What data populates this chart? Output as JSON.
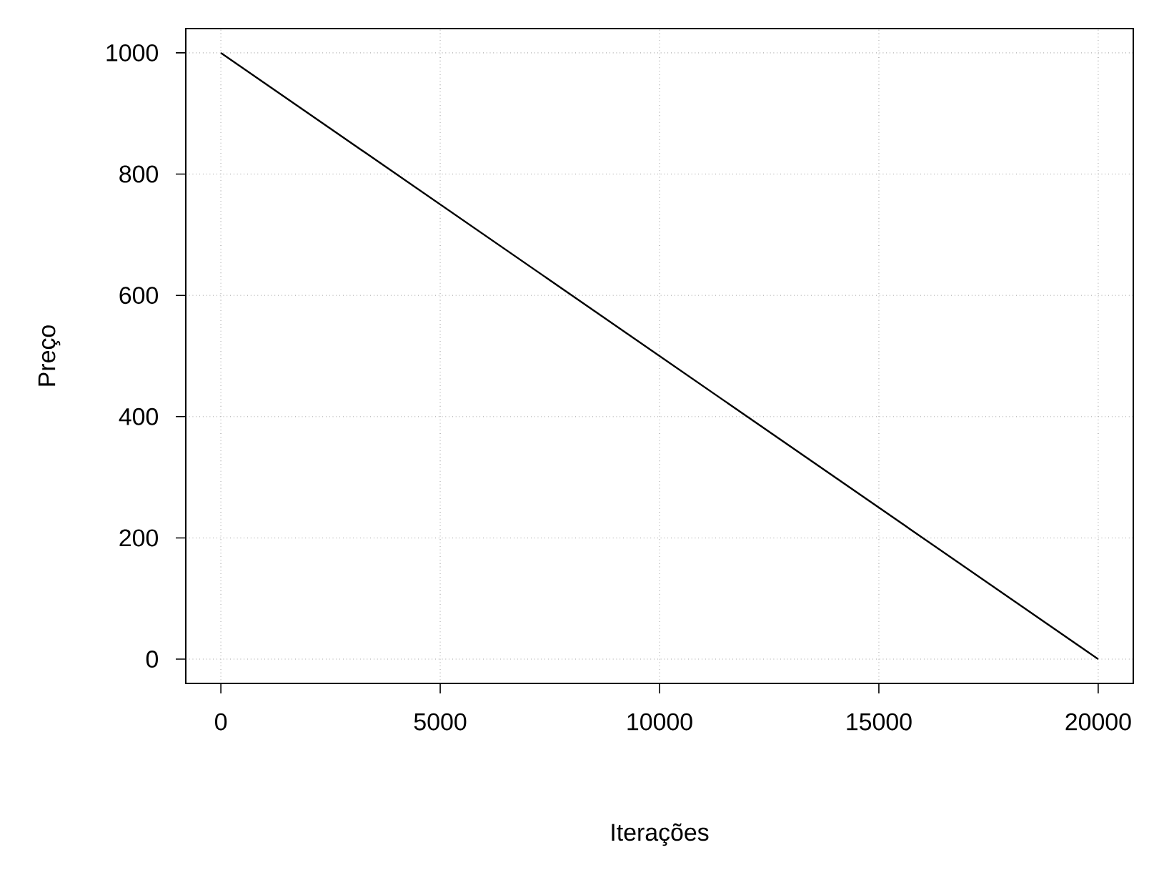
{
  "chart_data": {
    "type": "line",
    "xlabel": "Iterações",
    "ylabel": "Preço",
    "x": [
      0,
      20000
    ],
    "series": [
      {
        "color": "#000000",
        "values": [
          1000,
          0
        ]
      }
    ],
    "xlim": [
      -800,
      20800
    ],
    "ylim": [
      -40,
      1040
    ],
    "xticks": [
      0,
      5000,
      10000,
      15000,
      20000
    ],
    "yticks": [
      0,
      200,
      400,
      600,
      800,
      1000
    ],
    "grid": true,
    "marker": "none",
    "line_style": "solid"
  }
}
